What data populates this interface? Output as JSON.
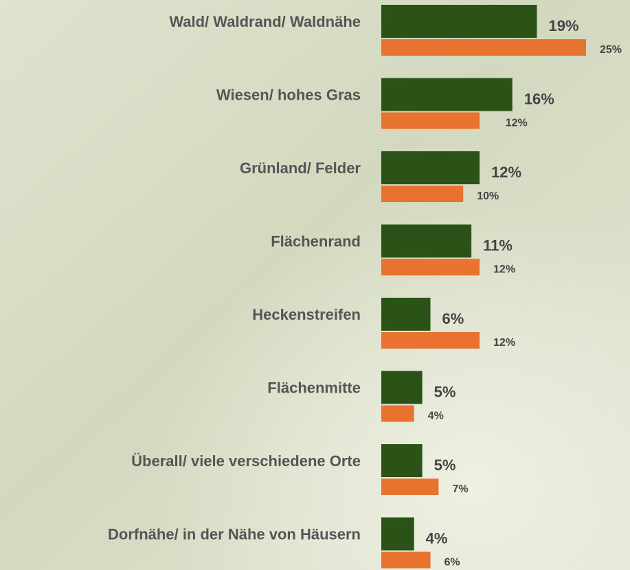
{
  "chart_data": {
    "type": "bar",
    "orientation": "horizontal",
    "categories": [
      "Wald/ Waldrand/ Waldnähe",
      "Wiesen/ hohes Gras",
      "Grünland/ Felder",
      "Flächenrand",
      "Heckenstreifen",
      "Flächenmitte",
      "Überall/ viele verschiedene Orte",
      "Dorfnähe/ in der Nähe von Häusern"
    ],
    "series": [
      {
        "color": "#2b5318",
        "values": [
          19,
          16,
          12,
          11,
          6,
          5,
          5,
          4
        ],
        "value_labels": [
          "19%",
          "16%",
          "12%",
          "11%",
          "6%",
          "5%",
          "5%",
          "4%"
        ]
      },
      {
        "color": "#e87330",
        "values": [
          25,
          12,
          10,
          12,
          12,
          4,
          7,
          6
        ],
        "value_labels": [
          "25%",
          "12%",
          "10%",
          "12%",
          "12%",
          "4%",
          "7%",
          "6%"
        ]
      }
    ]
  }
}
